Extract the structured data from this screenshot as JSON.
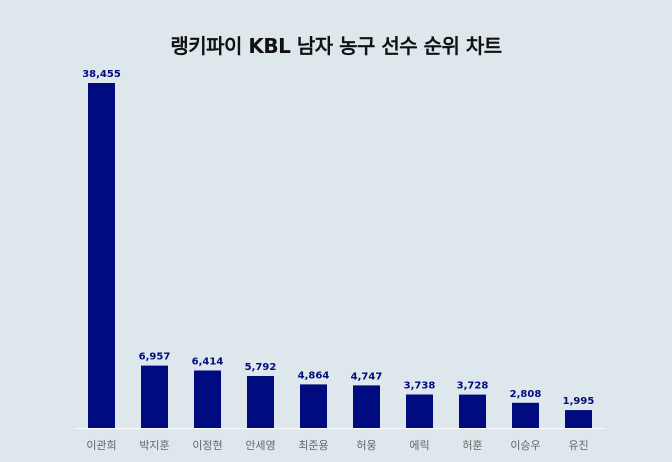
{
  "chart_data": {
    "type": "bar",
    "title": "랭키파이 KBL 남자 농구 선수 순위 차트",
    "categories": [
      "이관희",
      "박지훈",
      "이정현",
      "안세영",
      "최준용",
      "허웅",
      "에릭",
      "허훈",
      "이승우",
      "유진"
    ],
    "values": [
      38455,
      6957,
      6414,
      5792,
      4864,
      4747,
      3738,
      3728,
      2808,
      1995
    ],
    "value_labels": [
      "38,455",
      "6,957",
      "6,414",
      "5,792",
      "4,864",
      "4,747",
      "3,738",
      "3,728",
      "2,808",
      "1,995"
    ],
    "xlabel": "",
    "ylabel": "",
    "ylim": [
      0,
      38455
    ],
    "grid": false,
    "legend": "none"
  },
  "colors": {
    "background": "#dde7ec",
    "bar": "#000b80",
    "value_label": "#000b80",
    "category_label": "#666666",
    "baseline": "#ffffff",
    "title": "#111111"
  }
}
